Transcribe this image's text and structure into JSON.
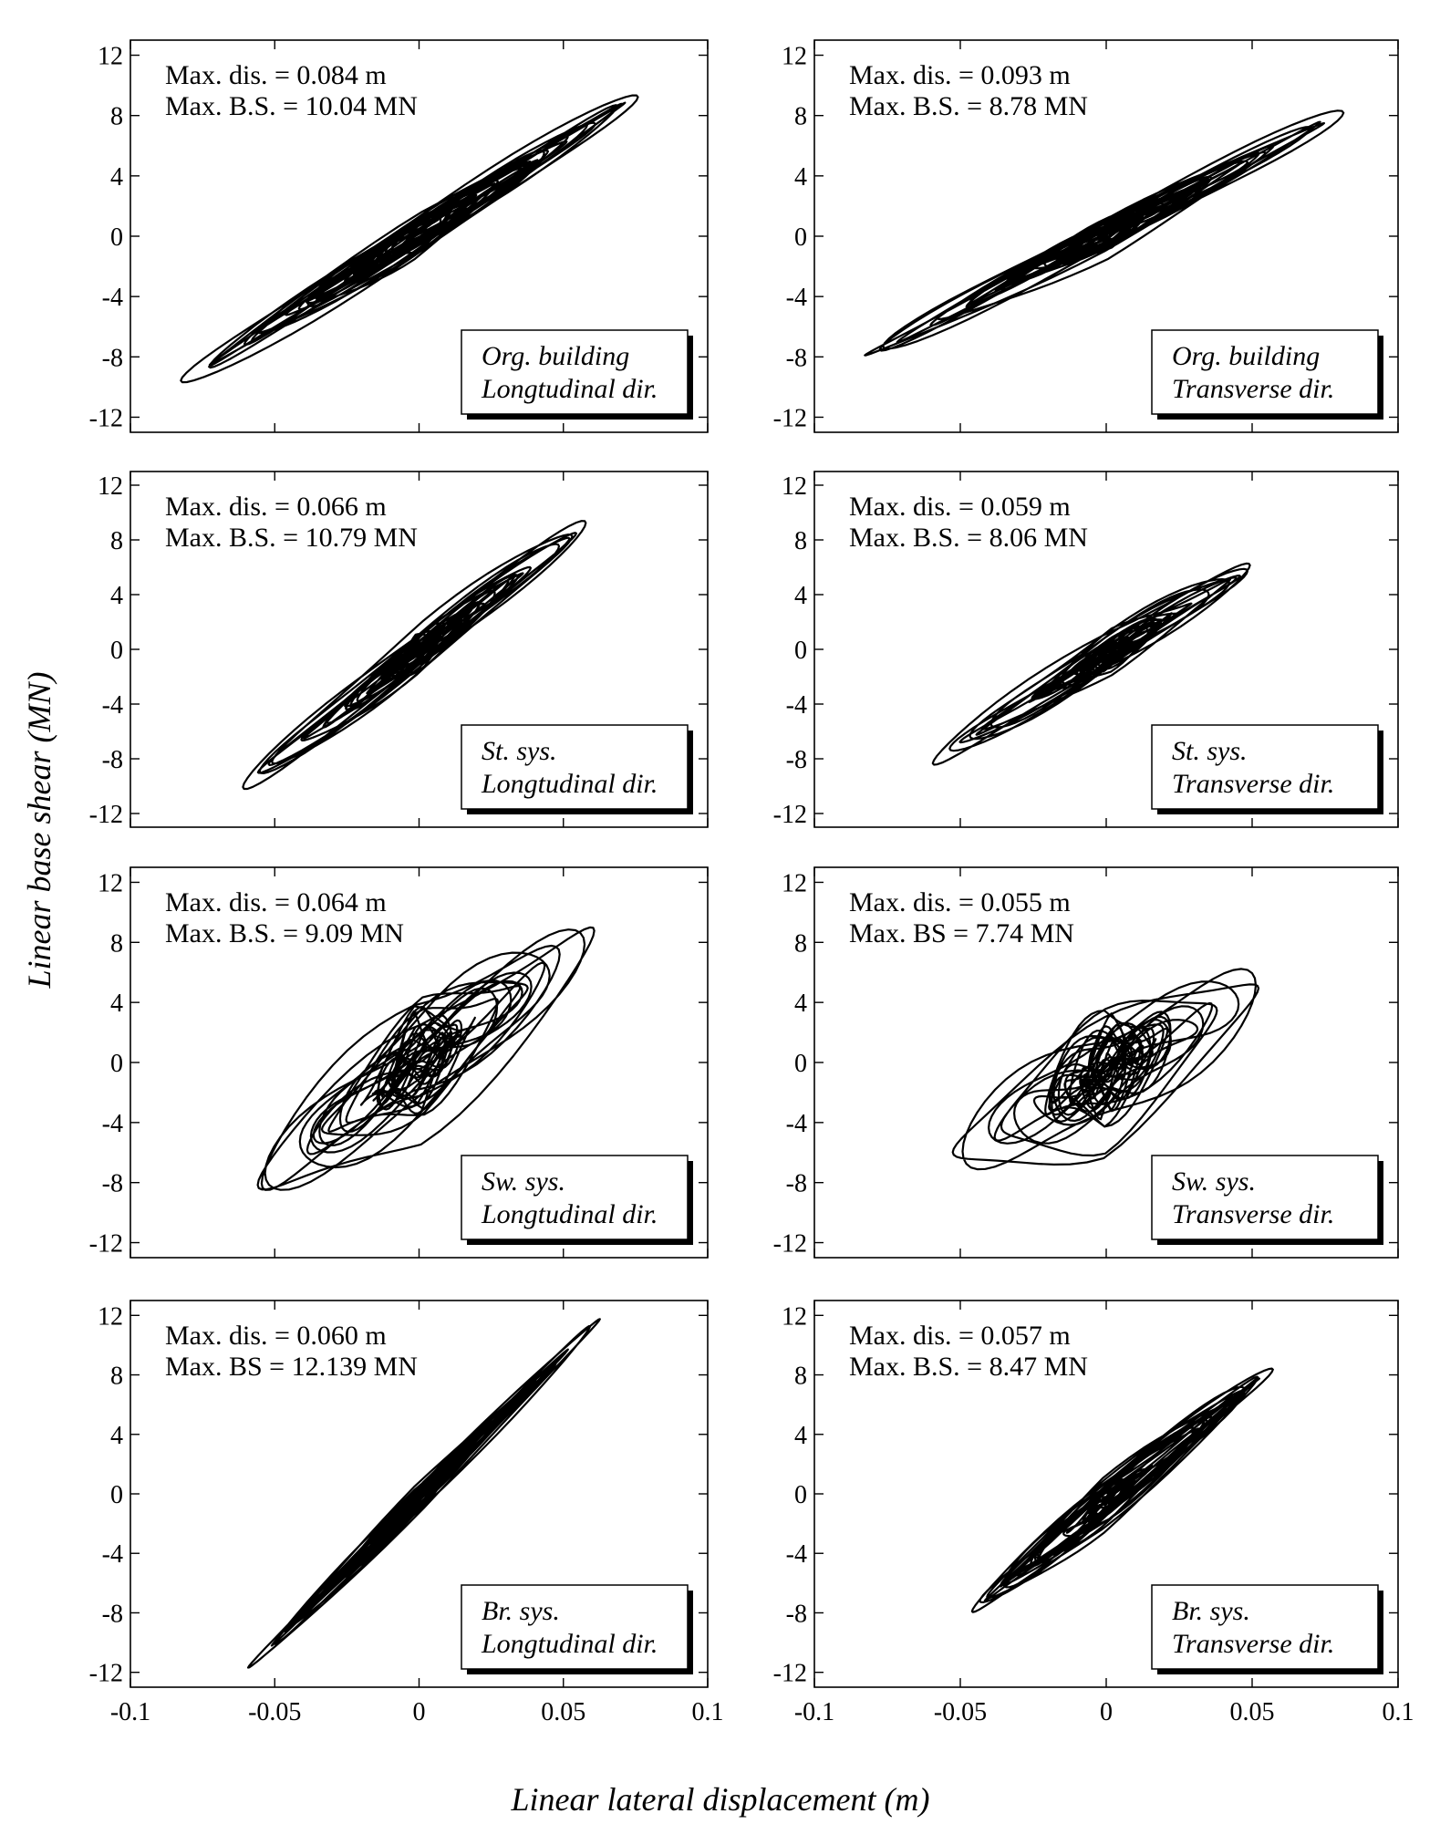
{
  "figure": {
    "ylabel": "Linear base shear (MN)",
    "xlabel": "Linear lateral displacement (m)"
  },
  "chart_data": [
    {
      "type": "line",
      "line1": "Org. building",
      "line2": "Longtudinal dir.",
      "stat1": "Max. dis.  = 0.084 m",
      "stat2": "Max. B.S. = 10.04 MN",
      "max_dis": 0.084,
      "max_bs": 10.04,
      "x_min": -0.085,
      "x_max": 0.077,
      "y_at_min": -10.0,
      "y_at_max": 9.5,
      "loop_width": 0.9,
      "scatter": 0.7,
      "xlim": [
        -0.1,
        0.1
      ],
      "ylim": [
        -13,
        13
      ],
      "yticks": [
        -12,
        -8,
        -4,
        0,
        4,
        8,
        12
      ],
      "xticks": [
        -0.1,
        -0.05,
        0,
        0.05,
        0.1
      ]
    },
    {
      "type": "line",
      "line1": "Org. building",
      "line2": "Transverse dir.",
      "stat1": "Max. dis.  = 0.093 m",
      "stat2": "Max. B.S. = 8.78  MN",
      "max_dis": 0.093,
      "max_bs": 8.78,
      "x_min": -0.09,
      "x_max": 0.08,
      "y_at_min": -8.7,
      "y_at_max": 8.1,
      "loop_width": 0.8,
      "scatter": 0.7,
      "xlim": [
        -0.1,
        0.1
      ],
      "ylim": [
        -13,
        13
      ],
      "yticks": [
        -12,
        -8,
        -4,
        0,
        4,
        8,
        12
      ],
      "xticks": [
        -0.1,
        -0.05,
        0,
        0.05,
        0.1
      ]
    },
    {
      "type": "line",
      "line1": "St. sys.",
      "line2": "Longtudinal dir.",
      "stat1": "Max. dis.  = 0.066 m",
      "stat2": "Max. B.S. = 10.79 MN",
      "max_dis": 0.066,
      "max_bs": 10.79,
      "x_min": -0.066,
      "x_max": 0.058,
      "y_at_min": -10.8,
      "y_at_max": 9.2,
      "loop_width": 1.0,
      "scatter": 0.8,
      "xlim": [
        -0.1,
        0.1
      ],
      "ylim": [
        -13,
        13
      ],
      "yticks": [
        -12,
        -8,
        -4,
        0,
        4,
        8,
        12
      ],
      "xticks": [
        -0.1,
        -0.05,
        0,
        0.05,
        0.1
      ]
    },
    {
      "type": "line",
      "line1": "St. sys.",
      "line2": "Transverse dir.",
      "stat1": "Max. dis.  = 0.059 m",
      "stat2": "Max. B.S. = 8.06 MN",
      "max_dis": 0.059,
      "max_bs": 8.06,
      "x_min": -0.059,
      "x_max": 0.051,
      "y_at_min": -8.1,
      "y_at_max": 6.2,
      "loop_width": 1.0,
      "scatter": 0.9,
      "xlim": [
        -0.1,
        0.1
      ],
      "ylim": [
        -13,
        13
      ],
      "yticks": [
        -12,
        -8,
        -4,
        0,
        4,
        8,
        12
      ],
      "xticks": [
        -0.1,
        -0.05,
        0,
        0.05,
        0.1
      ]
    },
    {
      "type": "line",
      "line1": "Sw. sys.",
      "line2": "Longtudinal dir.",
      "stat1": "Max. dis.  = 0.064 m",
      "stat2": "Max. B.S. = 9.09 MN",
      "max_dis": 0.064,
      "max_bs": 9.09,
      "x_min": -0.064,
      "x_max": 0.06,
      "y_at_min": -8.9,
      "y_at_max": 8.3,
      "loop_width": 2.6,
      "scatter": 2.4,
      "xlim": [
        -0.1,
        0.1
      ],
      "ylim": [
        -13,
        13
      ],
      "yticks": [
        -12,
        -8,
        -4,
        0,
        4,
        8,
        12
      ],
      "xticks": [
        -0.1,
        -0.05,
        0,
        0.05,
        0.1
      ]
    },
    {
      "type": "line",
      "line1": "Sw. sys.",
      "line2": "Transverse dir.",
      "stat1": "Max. dis. = 0.055 m",
      "stat2": "Max. BS   = 7.74  MN",
      "max_dis": 0.055,
      "max_bs": 7.74,
      "x_min": -0.055,
      "x_max": 0.053,
      "y_at_min": -6.2,
      "y_at_max": 5.0,
      "loop_width": 2.8,
      "scatter": 2.6,
      "xlim": [
        -0.1,
        0.1
      ],
      "ylim": [
        -13,
        13
      ],
      "yticks": [
        -12,
        -8,
        -4,
        0,
        4,
        8,
        12
      ],
      "xticks": [
        -0.1,
        -0.05,
        0,
        0.05,
        0.1
      ]
    },
    {
      "type": "line",
      "line1": "Br. sys.",
      "line2": "Longtudinal dir.",
      "stat1": "Max. dis. = 0.060  m",
      "stat2": "Max. BS  = 12.139 MN",
      "max_dis": 0.06,
      "max_bs": 12.139,
      "x_min": -0.061,
      "x_max": 0.061,
      "y_at_min": -12.1,
      "y_at_max": 11.5,
      "loop_width": 0.6,
      "scatter": 0.5,
      "xlim": [
        -0.1,
        0.1
      ],
      "ylim": [
        -13,
        13
      ],
      "yticks": [
        -12,
        -8,
        -4,
        0,
        4,
        8,
        12
      ],
      "xticks": [
        -0.1,
        -0.05,
        0,
        0.05,
        0.1
      ]
    },
    {
      "type": "line",
      "line1": "Br. sys.",
      "line2": "Transverse dir.",
      "stat1": "Max. dis.    = 0.057 m",
      "stat2": "Max. B.S.  = 8.47 MN",
      "max_dis": 0.057,
      "max_bs": 8.47,
      "x_min": -0.048,
      "x_max": 0.057,
      "y_at_min": -8.1,
      "y_at_max": 8.5,
      "loop_width": 0.9,
      "scatter": 0.8,
      "xlim": [
        -0.1,
        0.1
      ],
      "ylim": [
        -13,
        13
      ],
      "yticks": [
        -12,
        -8,
        -4,
        0,
        4,
        8,
        12
      ],
      "xticks": [
        -0.1,
        -0.05,
        0,
        0.05,
        0.1
      ]
    }
  ]
}
